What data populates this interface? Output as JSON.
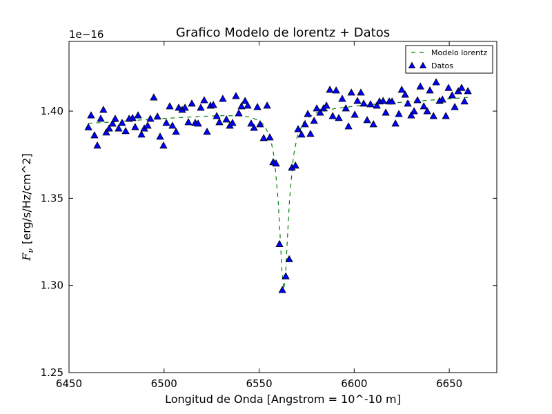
{
  "chart_data": {
    "type": "scatter",
    "title": "Grafico Modelo de lorentz + Datos",
    "xlabel": "Longitud de Onda [Angstrom = 10^-10 m]",
    "ylabel_symbol": "F",
    "ylabel_subscript": "ν",
    "ylabel_text": "[erg/s/Hz/cm^2]",
    "y_offset_label": "1e−16",
    "xlim": [
      6450,
      6675
    ],
    "ylim": [
      1.25,
      1.44
    ],
    "xticks": [
      6450,
      6500,
      6550,
      6600,
      6650
    ],
    "yticks": [
      1.25,
      {
        "value": 1.3,
        "label": "1.30"
      },
      1.35,
      {
        "value": 1.4,
        "label": "1.40"
      }
    ],
    "legend": "upper right",
    "series": [
      {
        "name": "Modelo lorentz",
        "type": "line",
        "style": "dashed",
        "color": "#008000",
        "x": [
          6460,
          6470,
          6480,
          6490,
          6500,
          6510,
          6520,
          6530,
          6540,
          6545,
          6550,
          6553,
          6556,
          6558,
          6560,
          6561,
          6562,
          6563,
          6564,
          6565,
          6566,
          6568,
          6570,
          6573,
          6576,
          6580,
          6590,
          6600,
          6610,
          6620,
          6630,
          6640,
          6650,
          6660
        ],
        "values": [
          1.393,
          1.3936,
          1.3944,
          1.3951,
          1.3958,
          1.3964,
          1.397,
          1.3974,
          1.3973,
          1.3966,
          1.3946,
          1.3915,
          1.3842,
          1.3731,
          1.349,
          1.3292,
          1.3079,
          1.2977,
          1.3081,
          1.3296,
          1.3494,
          1.3739,
          1.3852,
          1.393,
          1.3965,
          1.3989,
          1.4015,
          1.4028,
          1.4039,
          1.4047,
          1.4055,
          1.4063,
          1.4071,
          1.4079
        ]
      },
      {
        "name": "Datos",
        "type": "scatter",
        "marker": "triangle",
        "color": "#0000ff",
        "x": [
          6460.2,
          6461.6,
          6463.4,
          6464.9,
          6466.7,
          6468.1,
          6469.6,
          6471.1,
          6472.9,
          6474.3,
          6476.1,
          6477.9,
          6479.8,
          6481.6,
          6483.4,
          6484.8,
          6486.3,
          6488.1,
          6489.6,
          6491.4,
          6492.8,
          6494.6,
          6496.5,
          6497.9,
          6499.7,
          6501.2,
          6503.0,
          6504.4,
          6506.3,
          6507.7,
          6509.5,
          6511.0,
          6512.8,
          6514.6,
          6516.4,
          6517.9,
          6519.3,
          6521.1,
          6522.6,
          6524.4,
          6525.9,
          6527.7,
          6529.1,
          6530.9,
          6532.8,
          6534.6,
          6536.0,
          6537.8,
          6539.3,
          6540.7,
          6542.6,
          6544.0,
          6545.8,
          6547.3,
          6549.1,
          6550.5,
          6552.4,
          6554.2,
          6555.6,
          6557.4,
          6558.9,
          6560.7,
          6562.2,
          6564.0,
          6565.8,
          6567.2,
          6569.1,
          6570.5,
          6572.3,
          6574.1,
          6575.6,
          6577.0,
          6578.9,
          6580.3,
          6582.1,
          6583.9,
          6585.4,
          6587.2,
          6588.7,
          6590.5,
          6591.9,
          6593.7,
          6595.6,
          6597.0,
          6598.5,
          6600.3,
          6601.7,
          6603.5,
          6605.0,
          6606.8,
          6608.6,
          6610.1,
          6611.9,
          6613.3,
          6615.2,
          6616.6,
          6618.4,
          6619.9,
          6621.7,
          6623.5,
          6625.0,
          6626.8,
          6628.2,
          6630.0,
          6631.5,
          6633.3,
          6634.8,
          6636.6,
          6638.4,
          6639.8,
          6641.7,
          6643.1,
          6644.9,
          6646.4,
          6648.2,
          6649.6,
          6651.5,
          6652.9,
          6654.7,
          6656.5,
          6658.0,
          6659.8
        ],
        "values": [
          1.3908,
          1.3976,
          1.3862,
          1.3803,
          1.3957,
          1.4008,
          1.3878,
          1.3901,
          1.3929,
          1.3957,
          1.3901,
          1.3933,
          1.3886,
          1.3957,
          1.3961,
          1.3909,
          1.3976,
          1.3866,
          1.3901,
          1.3917,
          1.3957,
          1.4079,
          1.3969,
          1.3854,
          1.3803,
          1.3933,
          1.4028,
          1.3917,
          1.3882,
          1.402,
          1.4008,
          1.402,
          1.3937,
          1.4044,
          1.3933,
          1.3929,
          1.402,
          1.4063,
          1.3882,
          1.4032,
          1.4036,
          1.3972,
          1.3937,
          1.4071,
          1.3953,
          1.3917,
          1.3933,
          1.4087,
          1.3988,
          1.4028,
          1.4059,
          1.4032,
          1.3929,
          1.3905,
          1.4024,
          1.3925,
          1.3846,
          1.4032,
          1.385,
          1.3708,
          1.37,
          1.3238,
          1.2974,
          1.3053,
          1.3151,
          1.3676,
          1.3688,
          1.3897,
          1.3866,
          1.3925,
          1.3984,
          1.387,
          1.3945,
          1.4016,
          1.3992,
          1.4016,
          1.4032,
          1.4123,
          1.3972,
          1.4119,
          1.3961,
          1.4071,
          1.4016,
          1.3913,
          1.4107,
          1.398,
          1.4059,
          1.4107,
          1.4044,
          1.3949,
          1.404,
          1.3925,
          1.4032,
          1.4056,
          1.4059,
          1.3992,
          1.4056,
          1.4056,
          1.3929,
          1.3984,
          1.4123,
          1.4095,
          1.4044,
          1.3976,
          1.4,
          1.4063,
          1.4142,
          1.4028,
          1.4,
          1.4119,
          1.3972,
          1.4166,
          1.4059,
          1.4067,
          1.3972,
          1.4134,
          1.4091,
          1.4024,
          1.4115,
          1.4134,
          1.4056,
          1.4115
        ]
      }
    ]
  }
}
